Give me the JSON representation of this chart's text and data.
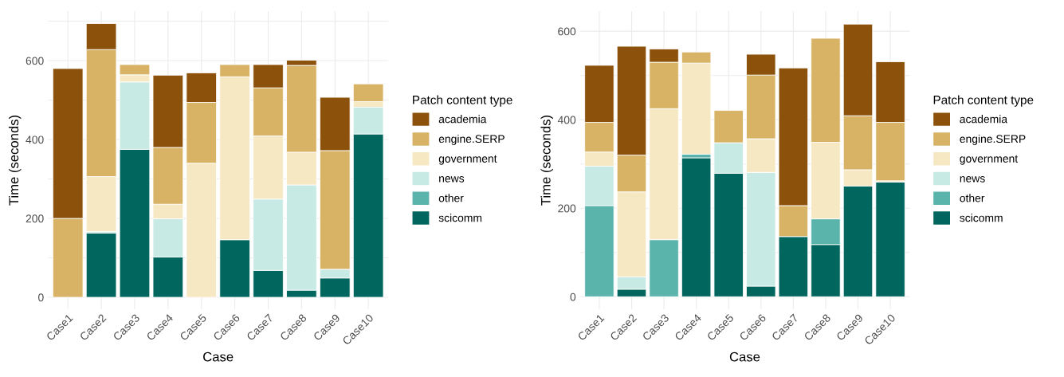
{
  "chart_data": [
    {
      "type": "bar",
      "stacked": true,
      "xlabel": "Case",
      "ylabel": "Time (seconds)",
      "legend_title": "Patch content type",
      "legend": "right",
      "grid": true,
      "categories": [
        "Case1",
        "Case2",
        "Case3",
        "Case4",
        "Case5",
        "Case6",
        "Case7",
        "Case8",
        "Case9",
        "Case10"
      ],
      "ylim": [
        -30,
        725
      ],
      "yticks": [
        0,
        {
          "value": 100,
          "label": null
        },
        200,
        {
          "value": 300,
          "label": null
        },
        400,
        {
          "value": 500,
          "label": null
        },
        600,
        {
          "value": 700,
          "label": null
        }
      ],
      "series": [
        {
          "name": "scicomm",
          "color": "#01665e",
          "values": [
            0,
            163,
            375,
            102,
            0,
            146,
            68,
            18,
            49,
            414
          ]
        },
        {
          "name": "other",
          "color": "#5ab4ac",
          "values": [
            0,
            0,
            0,
            0,
            0,
            0,
            0,
            0,
            0,
            0
          ]
        },
        {
          "name": "news",
          "color": "#c7eae5",
          "values": [
            0,
            4,
            171,
            97,
            0,
            0,
            181,
            267,
            22,
            68
          ]
        },
        {
          "name": "government",
          "color": "#f6e8c3",
          "values": [
            0,
            139,
            18,
            37,
            340,
            413,
            160,
            83,
            0,
            14
          ]
        },
        {
          "name": "engine.SERP",
          "color": "#d8b365",
          "values": [
            200,
            322,
            26,
            144,
            154,
            31,
            122,
            220,
            301,
            45
          ]
        },
        {
          "name": "academia",
          "color": "#8c510a",
          "values": [
            380,
            66,
            0,
            183,
            75,
            0,
            59,
            13,
            135,
            0
          ]
        }
      ]
    },
    {
      "type": "bar",
      "stacked": true,
      "xlabel": "Case",
      "ylabel": "Time (seconds)",
      "legend_title": "Patch content type",
      "legend": "right",
      "grid": true,
      "categories": [
        "Case1",
        "Case2",
        "Case3",
        "Case4",
        "Case5",
        "Case6",
        "Case7",
        "Case8",
        "Case9",
        "Case10"
      ],
      "ylim": [
        -28,
        645
      ],
      "yticks": [
        0,
        {
          "value": 100,
          "label": null
        },
        200,
        {
          "value": 300,
          "label": null
        },
        400,
        {
          "value": 500,
          "label": null
        },
        600
      ],
      "series": [
        {
          "name": "scicomm",
          "color": "#01665e",
          "values": [
            0,
            17,
            0,
            314,
            279,
            24,
            136,
            118,
            250,
            259
          ]
        },
        {
          "name": "other",
          "color": "#5ab4ac",
          "values": [
            206,
            0,
            129,
            8,
            0,
            0,
            0,
            58,
            0,
            0
          ]
        },
        {
          "name": "news",
          "color": "#c7eae5",
          "values": [
            89,
            28,
            0,
            0,
            69,
            257,
            0,
            0,
            0,
            0
          ]
        },
        {
          "name": "government",
          "color": "#f6e8c3",
          "values": [
            32,
            192,
            296,
            206,
            0,
            76,
            0,
            173,
            37,
            3
          ]
        },
        {
          "name": "engine.SERP",
          "color": "#d8b365",
          "values": [
            67,
            83,
            105,
            25,
            73,
            144,
            70,
            235,
            122,
            132
          ]
        },
        {
          "name": "academia",
          "color": "#8c510a",
          "values": [
            129,
            246,
            30,
            0,
            0,
            47,
            311,
            0,
            207,
            137
          ]
        }
      ]
    }
  ]
}
